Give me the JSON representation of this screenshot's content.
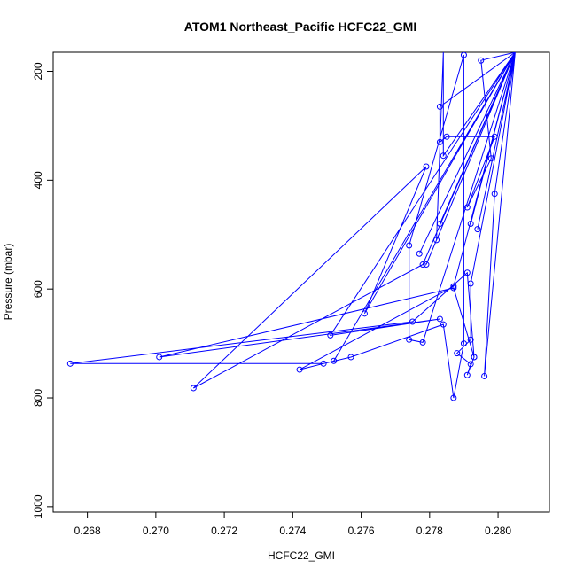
{
  "chart_data": {
    "type": "line",
    "title": "ATOM1 Northeast_Pacific HCFC22_GMI",
    "xlabel": "HCFC22_GMI",
    "ylabel": "Pressure (mbar)",
    "xlim": [
      0.267,
      0.2815
    ],
    "ylim": [
      1010,
      165
    ],
    "y_reversed": true,
    "xticks": [
      0.268,
      0.27,
      0.272,
      0.274,
      0.276,
      0.278,
      0.28
    ],
    "xtick_labels": [
      "0.268",
      "0.270",
      "0.272",
      "0.274",
      "0.276",
      "0.278",
      "0.280"
    ],
    "yticks": [
      200,
      400,
      600,
      800,
      1000
    ],
    "ytick_labels": [
      "200",
      "400",
      "600",
      "800",
      "1000"
    ],
    "grid": false,
    "series": [
      {
        "color": "#0000ff",
        "marker": "open-circle",
        "points": [
          [
            0.2805,
            165
          ],
          [
            0.2795,
            180
          ],
          [
            0.2798,
            360
          ],
          [
            0.2791,
            450
          ],
          [
            0.2799,
            320
          ],
          [
            0.2785,
            320
          ],
          [
            0.2783,
            330
          ],
          [
            0.2783,
            265
          ],
          [
            0.2805,
            165
          ],
          [
            0.2783,
            480
          ],
          [
            0.2805,
            165
          ],
          [
            0.2784,
            355
          ],
          [
            0.2784,
            165
          ],
          [
            0.2782,
            510
          ],
          [
            0.2805,
            165
          ],
          [
            0.2794,
            490
          ],
          [
            0.2805,
            165
          ],
          [
            0.2792,
            480
          ],
          [
            0.2805,
            165
          ],
          [
            0.2777,
            535
          ],
          [
            0.2805,
            165
          ],
          [
            0.2779,
            555
          ],
          [
            0.2805,
            165
          ],
          [
            0.2799,
            425
          ],
          [
            0.2796,
            760
          ],
          [
            0.2805,
            165
          ],
          [
            0.2787,
            595
          ],
          [
            0.2742,
            748
          ],
          [
            0.2752,
            732
          ],
          [
            0.2805,
            165
          ],
          [
            0.2778,
            555
          ],
          [
            0.2711,
            782
          ],
          [
            0.2779,
            375
          ],
          [
            0.2761,
            645
          ],
          [
            0.2805,
            165
          ],
          [
            0.2792,
            590
          ],
          [
            0.2792,
            693
          ],
          [
            0.2788,
            718
          ],
          [
            0.2792,
            738
          ],
          [
            0.2791,
            758
          ],
          [
            0.2793,
            725
          ],
          [
            0.2787,
            598
          ],
          [
            0.2701,
            725
          ],
          [
            0.2783,
            655
          ],
          [
            0.2751,
            685
          ],
          [
            0.2805,
            165
          ],
          [
            0.2778,
            698
          ],
          [
            0.2774,
            693
          ],
          [
            0.2774,
            520
          ],
          [
            0.279,
            170
          ],
          [
            0.279,
            700
          ],
          [
            0.2787,
            800
          ],
          [
            0.2784,
            665
          ],
          [
            0.2757,
            725
          ],
          [
            0.2749,
            737
          ],
          [
            0.2675,
            737
          ],
          [
            0.2775,
            660
          ],
          [
            0.2791,
            570
          ],
          [
            0.2793,
            725
          ]
        ]
      }
    ]
  }
}
